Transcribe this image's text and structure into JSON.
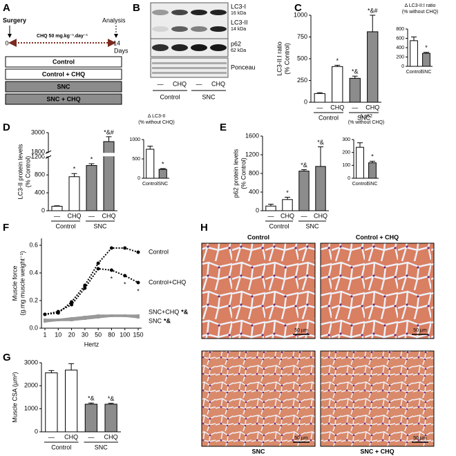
{
  "panel_labels": [
    "A",
    "B",
    "C",
    "D",
    "E",
    "F",
    "G",
    "H"
  ],
  "protocol": {
    "start_label": "Surgery",
    "end_label": "Analysis",
    "treatment": "CHQ 50 mg.kg⁻¹.day⁻¹",
    "day_start": 0,
    "day_end": 14,
    "unit": "Days",
    "groups": [
      "Control",
      "Control + CHQ",
      "SNC",
      "SNC + CHQ"
    ]
  },
  "blot": {
    "bands": [
      {
        "name": "LC3-I",
        "size": "16 kDa"
      },
      {
        "name": "LC3-II",
        "size": "14 kDa"
      },
      {
        "name": "p62",
        "size": "62 kDa"
      },
      {
        "name": "Ponceau"
      }
    ],
    "lanes": [
      "—",
      "CHQ",
      "—",
      "CHQ"
    ],
    "groups": [
      "Control",
      "SNC"
    ]
  },
  "histology": {
    "images": [
      "Control",
      "Control + CHQ",
      "SNC",
      "SNC + CHQ"
    ],
    "scale_bar": "50 µm"
  },
  "chart_data": [
    {
      "type": "bar",
      "ylabel": [
        "LC3-II:I ratio",
        "(% Control)"
      ],
      "categories": [
        "—",
        "CHQ",
        "—",
        "CHQ"
      ],
      "groups": [
        "Control",
        "SNC"
      ],
      "values": [
        100,
        410,
        275,
        810
      ],
      "errors": [
        10,
        15,
        25,
        190
      ],
      "annotations": [
        null,
        "*",
        "*&",
        "*&#"
      ],
      "colors": [
        "#ffffff",
        "#ffffff",
        "#8c8c8c",
        "#8c8c8c"
      ],
      "ylim": [
        0,
        1000
      ],
      "yticks": [
        0,
        250,
        500,
        750,
        1000
      ]
    },
    {
      "type": "bar",
      "title": "Δ LC3-II:I ratio",
      "subtitle": "(% without CHQ)",
      "categories": [
        "Control",
        "SNC"
      ],
      "values": [
        550,
        280
      ],
      "errors": [
        80,
        20
      ],
      "annotations": [
        null,
        "*"
      ],
      "colors": [
        "#ffffff",
        "#8c8c8c"
      ],
      "ylim": [
        0,
        800
      ],
      "yticks": [
        0,
        200,
        400,
        600,
        800
      ]
    },
    {
      "type": "bar",
      "ylabel": [
        "LC3-II protein levels",
        "(% Control)"
      ],
      "categories": [
        "—",
        "CHQ",
        "—",
        "CHQ"
      ],
      "groups": [
        "Control",
        "SNC"
      ],
      "values": [
        100,
        760,
        1010,
        2450
      ],
      "errors": [
        10,
        70,
        40,
        300
      ],
      "annotations": [
        null,
        "*",
        "*",
        "*&#"
      ],
      "colors": [
        "#ffffff",
        "#ffffff",
        "#8c8c8c",
        "#8c8c8c"
      ],
      "ylim": [
        0,
        3000
      ],
      "axis_break": [
        1200,
        1800
      ],
      "yticks": [
        0,
        400,
        800,
        1200,
        1800,
        3000
      ]
    },
    {
      "type": "bar",
      "title": "Δ LC3-II",
      "subtitle": "(% without CHQ)",
      "categories": [
        "Control",
        "SNC"
      ],
      "values": [
        750,
        230
      ],
      "errors": [
        80,
        20
      ],
      "annotations": [
        null,
        "*"
      ],
      "colors": [
        "#ffffff",
        "#8c8c8c"
      ],
      "ylim": [
        0,
        1000
      ],
      "yticks": [
        0,
        500,
        1000
      ]
    },
    {
      "type": "bar",
      "ylabel": [
        "p62 protein levels",
        "(% Control)"
      ],
      "categories": [
        "—",
        "CHQ",
        "—",
        "CHQ"
      ],
      "groups": [
        "Control",
        "SNC"
      ],
      "values": [
        100,
        240,
        850,
        950
      ],
      "errors": [
        40,
        50,
        30,
        420
      ],
      "annotations": [
        null,
        "*",
        "*&",
        "*&"
      ],
      "colors": [
        "#ffffff",
        "#ffffff",
        "#8c8c8c",
        "#8c8c8c"
      ],
      "ylim": [
        0,
        1600
      ],
      "yticks": [
        0,
        400,
        800,
        1200,
        1600
      ]
    },
    {
      "type": "bar",
      "title": "Δ p62",
      "subtitle": "(% without CHQ)",
      "categories": [
        "Control",
        "SNC"
      ],
      "values": [
        240,
        120
      ],
      "errors": [
        35,
        12
      ],
      "annotations": [
        null,
        "*"
      ],
      "colors": [
        "#ffffff",
        "#8c8c8c"
      ],
      "ylim": [
        0,
        300
      ],
      "yticks": [
        0,
        100,
        200,
        300
      ]
    },
    {
      "type": "line",
      "ylabel": [
        "Muscle force",
        "(g.mg muscle weight⁻¹)"
      ],
      "xlabel": "Hertz",
      "categories": [
        "1",
        "10",
        "20",
        "30",
        "50",
        "80",
        "100",
        "150"
      ],
      "ylim": [
        0,
        0.65
      ],
      "yticks": [
        {
          "value": 0,
          "label": "0.0"
        },
        0.2,
        0.4,
        0.6
      ],
      "series": [
        {
          "name": "Control",
          "color": "#000000",
          "style": "dotted",
          "values": [
            0.1,
            0.11,
            0.19,
            0.31,
            0.47,
            0.58,
            0.58,
            0.55
          ]
        },
        {
          "name": "Control+CHQ",
          "color": "#000000",
          "style": "dotted",
          "values": [
            0.1,
            0.12,
            0.17,
            0.29,
            0.43,
            0.42,
            0.38,
            0.33
          ],
          "annotations": [
            null,
            null,
            null,
            null,
            null,
            "*",
            "*",
            "*"
          ]
        },
        {
          "name": "SNC+CHQ",
          "color": "#999999",
          "style": "solid",
          "annotation": "*&",
          "values": [
            0.05,
            0.06,
            0.07,
            0.08,
            0.09,
            0.09,
            0.09,
            0.09
          ]
        },
        {
          "name": "SNC",
          "color": "#999999",
          "style": "solid",
          "annotation": "*&",
          "values": [
            0.06,
            0.06,
            0.06,
            0.07,
            0.08,
            0.09,
            0.09,
            0.08
          ]
        }
      ]
    },
    {
      "type": "bar",
      "ylabel": [
        "Muscle CSA (µm²)"
      ],
      "categories": [
        "—",
        "CHQ",
        "—",
        "CHQ"
      ],
      "groups": [
        "Control",
        "SNC"
      ],
      "values": [
        2560,
        2680,
        1200,
        1200
      ],
      "errors": [
        100,
        280,
        50,
        40
      ],
      "annotations": [
        null,
        null,
        "*&",
        "*&"
      ],
      "colors": [
        "#ffffff",
        "#ffffff",
        "#8c8c8c",
        "#8c8c8c"
      ],
      "ylim": [
        0,
        3000
      ],
      "yticks": [
        0,
        1000,
        2000,
        3000
      ]
    }
  ]
}
